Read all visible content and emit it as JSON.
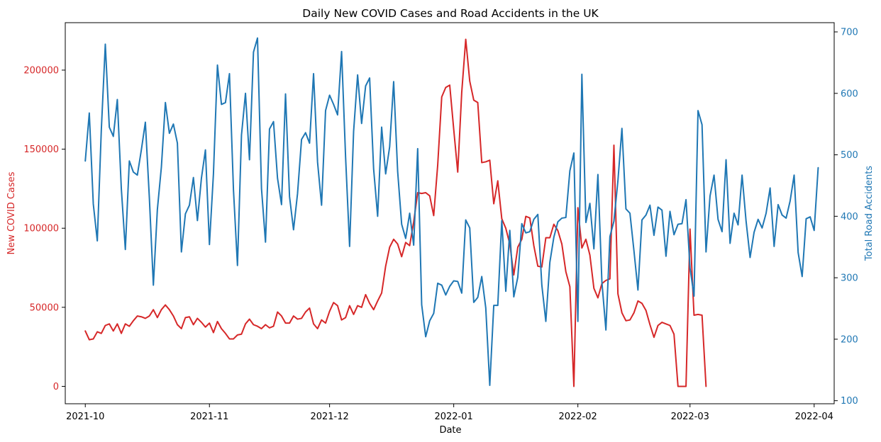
{
  "chart_data": {
    "type": "line",
    "title": "Daily New COVID Cases and Road Accidents in the UK",
    "xlabel": "Date",
    "ylabel_left": "New COVID Cases",
    "ylabel_right": "Total Road Accidents",
    "x_start": "2021-10-01",
    "x_range": [
      "2021-09-26",
      "2022-04-06"
    ],
    "x_ticks": [
      "2021-10",
      "2021-11",
      "2021-12",
      "2022-01",
      "2022-02",
      "2022-03",
      "2022-04"
    ],
    "x_tick_dates": [
      "2021-10-01",
      "2021-11-01",
      "2021-12-01",
      "2022-01-01",
      "2022-02-01",
      "2022-03-01",
      "2022-04-01"
    ],
    "ylim_left": [
      -11000,
      230000
    ],
    "ylim_right": [
      95,
      715
    ],
    "y_ticks_left": [
      0,
      50000,
      100000,
      150000,
      200000
    ],
    "y_ticks_right": [
      100,
      200,
      300,
      400,
      500,
      600,
      700
    ],
    "colors": {
      "cases": "#d62728",
      "accidents": "#1f77b4",
      "axis": "#000000"
    },
    "series": [
      {
        "axis": "left",
        "color": "#d62728",
        "values": [
          35000,
          29500,
          30000,
          34500,
          33500,
          38500,
          39500,
          35000,
          39500,
          33500,
          39500,
          38000,
          41500,
          44500,
          44000,
          43000,
          44500,
          48500,
          43500,
          48500,
          51500,
          48500,
          44500,
          39000,
          36500,
          43500,
          44000,
          39000,
          43000,
          40500,
          37500,
          40000,
          34000,
          41000,
          36500,
          33500,
          30000,
          30000,
          32500,
          33000,
          39500,
          42500,
          39000,
          38000,
          36500,
          39000,
          37000,
          38000,
          47000,
          44500,
          40000,
          40000,
          44500,
          42500,
          43000,
          47000,
          49500,
          39500,
          36500,
          42000,
          40000,
          47500,
          53000,
          51000,
          42000,
          43500,
          51000,
          45500,
          51000,
          50000,
          58000,
          52500,
          48500,
          54000,
          59000,
          76000,
          88000,
          93000,
          90000,
          82000,
          91000,
          89000,
          104000,
          122500,
          122000,
          122500,
          120500,
          108000,
          140000,
          183000,
          189000,
          190500,
          162500,
          135500,
          186000,
          219500,
          193000,
          181000,
          179500,
          141500,
          142000,
          143000,
          115500,
          130000,
          106000,
          100000,
          90000,
          70500,
          88000,
          93000,
          107500,
          106500,
          89000,
          76000,
          75500,
          94000,
          94000,
          102500,
          98500,
          90000,
          72500,
          63000,
          0,
          113000,
          87500,
          93000,
          83000,
          62000,
          56000,
          65000,
          67000,
          68000,
          152500,
          58500,
          46500,
          41500,
          42000,
          46500,
          54000,
          52500,
          48000,
          39000,
          31000,
          38500,
          40500,
          39500,
          38500,
          33000,
          0,
          0,
          0,
          99500,
          45000,
          45500,
          45000,
          0
        ]
      },
      {
        "axis": "right",
        "color": "#1f77b4",
        "values": [
          490,
          568,
          420,
          360,
          540,
          680,
          545,
          530,
          590,
          445,
          346,
          490,
          472,
          467,
          508,
          553,
          430,
          288,
          411,
          480,
          585,
          535,
          550,
          519,
          342,
          404,
          418,
          463,
          393,
          462,
          508,
          354,
          469,
          646,
          582,
          585,
          632,
          443,
          320,
          532,
          600,
          492,
          667,
          690,
          445,
          358,
          542,
          554,
          462,
          419,
          599,
          432,
          378,
          437,
          525,
          536,
          519,
          632,
          488,
          418,
          572,
          597,
          582,
          565,
          668,
          496,
          351,
          538,
          630,
          551,
          612,
          625,
          477,
          400,
          545,
          469,
          513,
          619,
          473,
          387,
          364,
          405,
          353,
          510,
          256,
          204,
          230,
          242,
          291,
          288,
          272,
          286,
          295,
          294,
          275,
          394,
          381,
          260,
          268,
          302,
          251,
          125,
          255,
          255,
          393,
          278,
          377,
          269,
          301,
          388,
          373,
          375,
          395,
          403,
          288,
          229,
          325,
          366,
          391,
          397,
          398,
          474,
          503,
          229,
          631,
          390,
          421,
          347,
          468,
          293,
          215,
          367,
          392,
          458,
          543,
          412,
          405,
          344,
          280,
          394,
          402,
          418,
          369,
          415,
          410,
          335,
          408,
          370,
          387,
          388,
          427,
          316,
          270,
          572,
          549,
          342,
          433,
          467,
          395,
          375,
          492,
          356,
          405,
          386,
          467,
          392,
          333,
          374,
          395,
          381,
          405,
          446,
          351,
          419,
          402,
          397,
          425,
          467,
          341,
          302,
          396,
          399,
          377,
          479
        ]
      }
    ]
  }
}
